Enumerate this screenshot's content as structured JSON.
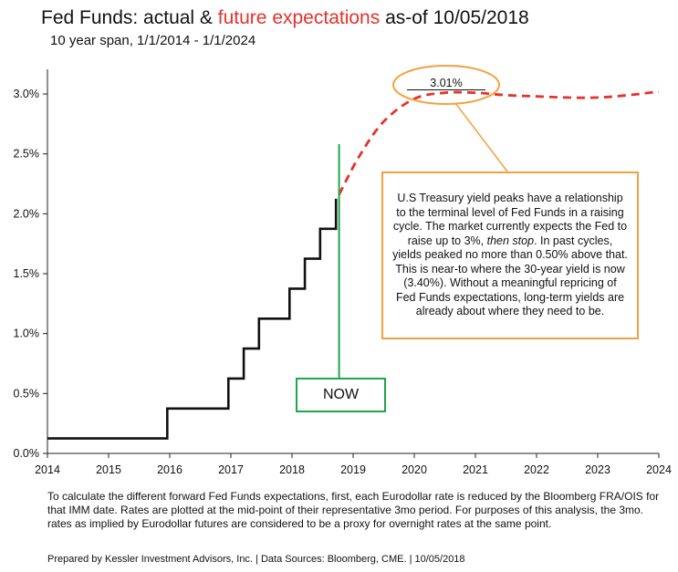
{
  "header": {
    "title_part1": "Fed Funds: actual & ",
    "title_highlight": "future expectations",
    "title_part2": " as-of 10/05/2018",
    "subtitle": "10 year span, 1/1/2014 - 1/1/2024"
  },
  "colors": {
    "actual": "#111111",
    "expected": "#e8312a",
    "callout_border": "#f5a040",
    "now_line": "#1fa64a"
  },
  "chart_data": {
    "type": "line",
    "title": "Fed Funds: actual & future expectations as-of 10/05/2018",
    "subtitle": "10 year span, 1/1/2014 - 1/1/2024",
    "xlabel": "",
    "ylabel": "",
    "xlim": [
      2014,
      2024
    ],
    "ylim": [
      0,
      3.0
    ],
    "x_ticks": [
      "2014",
      "2015",
      "2016",
      "2017",
      "2018",
      "2019",
      "2020",
      "2021",
      "2022",
      "2023",
      "2024"
    ],
    "y_ticks": [
      "0.0%",
      "0.5%",
      "1.0%",
      "1.5%",
      "2.0%",
      "2.5%",
      "3.0%"
    ],
    "grid": false,
    "series": [
      {
        "type": "step",
        "points": [
          [
            2014.0,
            0.125
          ],
          [
            2015.96,
            0.125
          ],
          [
            2015.96,
            0.375
          ],
          [
            2016.96,
            0.375
          ],
          [
            2016.96,
            0.625
          ],
          [
            2017.21,
            0.625
          ],
          [
            2017.21,
            0.875
          ],
          [
            2017.46,
            0.875
          ],
          [
            2017.46,
            1.125
          ],
          [
            2017.96,
            1.125
          ],
          [
            2017.96,
            1.375
          ],
          [
            2018.21,
            1.375
          ],
          [
            2018.21,
            1.625
          ],
          [
            2018.46,
            1.625
          ],
          [
            2018.46,
            1.875
          ],
          [
            2018.72,
            1.875
          ],
          [
            2018.72,
            2.125
          ]
        ]
      },
      {
        "type": "dashed",
        "points": [
          [
            2018.77,
            2.16
          ],
          [
            2019.1,
            2.48
          ],
          [
            2019.5,
            2.77
          ],
          [
            2020.0,
            2.96
          ],
          [
            2020.5,
            3.01
          ],
          [
            2021.0,
            3.01
          ],
          [
            2021.5,
            2.99
          ],
          [
            2022.0,
            2.98
          ],
          [
            2022.5,
            2.97
          ],
          [
            2023.0,
            2.97
          ],
          [
            2023.5,
            2.99
          ],
          [
            2024.0,
            3.02
          ]
        ]
      }
    ],
    "annotations": {
      "peak_label": "3.01%",
      "now_label": "NOW",
      "now_x": 2018.77,
      "callout_text": {
        "before_italic": "U.S Treasury yield peaks have a relationship to the terminal level of Fed Funds in a raising cycle. The market currently expects the Fed to raise up to 3%, ",
        "italic": "then stop",
        "after_italic": ". In past cycles, yields peaked no more than 0.50% above that. This is near-to where the 30-year yield is now (3.40%). Without a meaningful repricing of Fed Funds expectations, long-term yields are already about where they need to be."
      }
    }
  },
  "footnote": "To calculate the different forward Fed Funds expectations, first, each Eurodollar rate is reduced by the Bloomberg FRA/OIS for that IMM date.  Rates are plotted at the mid-point of their representative 3mo period.  For purposes of this analysis, the 3mo. rates  as implied by Eurodollar futures are considered to be a proxy for overnight rates at the same point.",
  "credit": "Prepared by Kessler Investment Advisors, Inc. | Data Sources: Bloomberg, CME. | 10/05/2018"
}
